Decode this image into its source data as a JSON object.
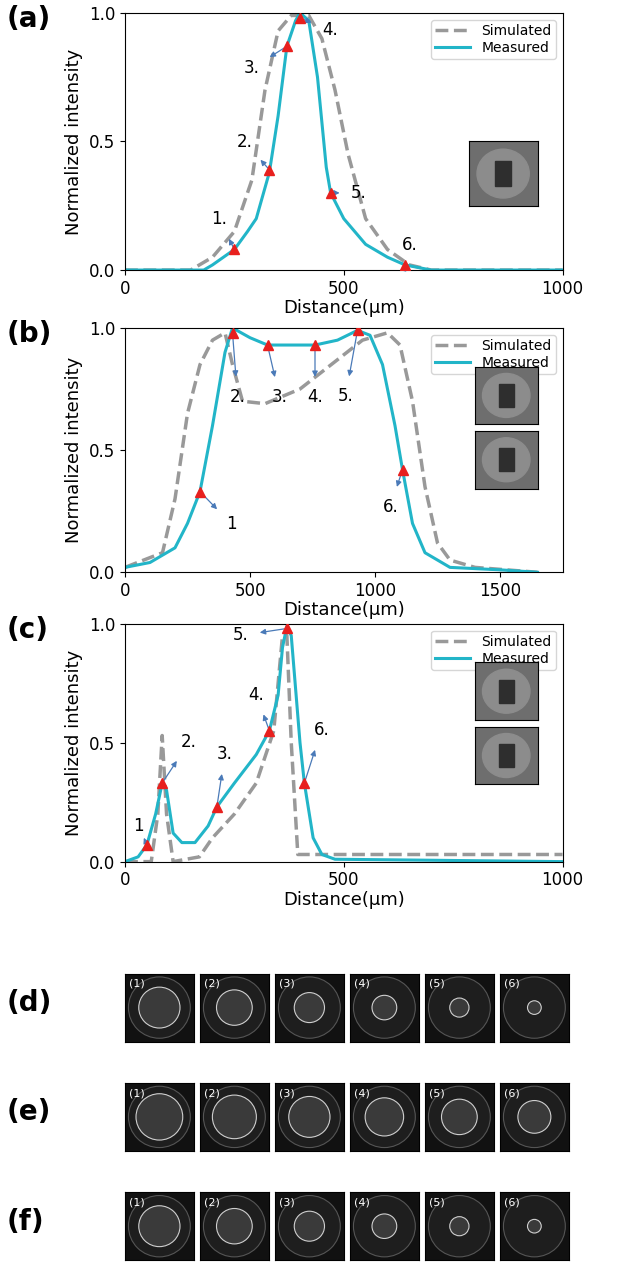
{
  "chart_data": [
    {
      "type": "line",
      "panel": "(a)",
      "x_label": "Distance(μm)",
      "y_label": "Normalized intensity",
      "xlim": [
        0,
        1000
      ],
      "xticks": [
        0,
        500,
        1000
      ],
      "ylim": [
        0,
        1.0
      ],
      "yticks": [
        0.0,
        0.5,
        1.0
      ],
      "legend": "upper right",
      "series": [
        {
          "name": "Simulated",
          "color": "#999999",
          "line_style": "dashed",
          "x": [
            0,
            150,
            200,
            250,
            290,
            320,
            350,
            380,
            420,
            450,
            480,
            510,
            550,
            600,
            650,
            700,
            1000
          ],
          "values": [
            0,
            0,
            0.05,
            0.15,
            0.35,
            0.7,
            0.93,
            0.99,
            0.99,
            0.9,
            0.7,
            0.45,
            0.2,
            0.08,
            0.02,
            0,
            0
          ]
        },
        {
          "name": "Measured",
          "color": "#22b5c8",
          "line_style": "solid",
          "x": [
            0,
            180,
            200,
            250,
            280,
            300,
            330,
            350,
            370,
            390,
            400,
            420,
            440,
            460,
            470,
            500,
            550,
            600,
            640,
            700,
            1000
          ],
          "values": [
            0,
            0,
            0.02,
            0.08,
            0.15,
            0.2,
            0.38,
            0.6,
            0.87,
            0.97,
            1.0,
            0.97,
            0.75,
            0.4,
            0.3,
            0.2,
            0.1,
            0.05,
            0.02,
            0,
            0
          ]
        }
      ],
      "annotations": [
        {
          "text": "1.",
          "x": 250,
          "y": 0.08
        },
        {
          "text": "2.",
          "x": 330,
          "y": 0.39
        },
        {
          "text": "3.",
          "x": 370,
          "y": 0.87
        },
        {
          "text": "4.",
          "x": 400,
          "y": 0.98
        },
        {
          "text": "5.",
          "x": 470,
          "y": 0.3
        },
        {
          "text": "6.",
          "x": 640,
          "y": 0.02
        }
      ]
    },
    {
      "type": "line",
      "panel": "(b)",
      "x_label": "Distance(μm)",
      "y_label": "Normalized intensity",
      "xlim": [
        0,
        1750
      ],
      "xticks": [
        0,
        500,
        1000,
        1500
      ],
      "ylim": [
        0,
        1.0
      ],
      "yticks": [
        0.0,
        0.5,
        1.0
      ],
      "legend": "upper right",
      "series": [
        {
          "name": "Simulated",
          "color": "#999999",
          "line_style": "dashed",
          "x": [
            0,
            150,
            200,
            250,
            300,
            350,
            400,
            430,
            470,
            560,
            700,
            850,
            950,
            1050,
            1100,
            1150,
            1200,
            1250,
            1300,
            1400,
            1650
          ],
          "values": [
            0.02,
            0.08,
            0.3,
            0.65,
            0.85,
            0.95,
            0.98,
            0.85,
            0.7,
            0.69,
            0.75,
            0.87,
            0.95,
            0.98,
            0.93,
            0.7,
            0.35,
            0.12,
            0.05,
            0.02,
            0.0
          ]
        },
        {
          "name": "Measured",
          "color": "#22b5c8",
          "line_style": "solid",
          "x": [
            0,
            100,
            200,
            250,
            300,
            350,
            400,
            430,
            500,
            570,
            650,
            760,
            850,
            930,
            980,
            1030,
            1080,
            1110,
            1150,
            1200,
            1300,
            1500,
            1650
          ],
          "values": [
            0.02,
            0.04,
            0.1,
            0.2,
            0.33,
            0.6,
            0.9,
            1.0,
            0.96,
            0.93,
            0.93,
            0.93,
            0.95,
            0.99,
            0.97,
            0.85,
            0.6,
            0.42,
            0.2,
            0.08,
            0.02,
            0.01,
            0.0
          ]
        }
      ],
      "annotations": [
        {
          "text": "1",
          "x": 300,
          "y": 0.33
        },
        {
          "text": "2.",
          "x": 430,
          "y": 0.98
        },
        {
          "text": "3.",
          "x": 570,
          "y": 0.93
        },
        {
          "text": "4.",
          "x": 760,
          "y": 0.93
        },
        {
          "text": "5.",
          "x": 930,
          "y": 0.99
        },
        {
          "text": "6.",
          "x": 1110,
          "y": 0.42
        }
      ]
    },
    {
      "type": "line",
      "panel": "(c)",
      "x_label": "Distance(μm)",
      "y_label": "Normalized intensity",
      "xlim": [
        0,
        1000
      ],
      "xticks": [
        0,
        500,
        1000
      ],
      "ylim": [
        0,
        1.0
      ],
      "yticks": [
        0.0,
        0.5,
        1.0
      ],
      "legend": "upper right",
      "series": [
        {
          "name": "Simulated",
          "color": "#999999",
          "line_style": "dashed",
          "x": [
            0,
            60,
            75,
            85,
            95,
            110,
            170,
            200,
            250,
            300,
            340,
            360,
            370,
            380,
            395,
            1000
          ],
          "values": [
            0,
            0,
            0.2,
            0.53,
            0.2,
            0.0,
            0.02,
            0.1,
            0.2,
            0.33,
            0.55,
            0.95,
            0.95,
            0.5,
            0.03,
            0.03
          ]
        },
        {
          "name": "Measured",
          "color": "#22b5c8",
          "line_style": "solid",
          "x": [
            0,
            30,
            50,
            70,
            85,
            95,
            110,
            130,
            160,
            190,
            210,
            250,
            300,
            330,
            350,
            360,
            370,
            380,
            400,
            410,
            430,
            450,
            480,
            1000
          ],
          "values": [
            0,
            0.02,
            0.07,
            0.2,
            0.33,
            0.3,
            0.12,
            0.08,
            0.08,
            0.15,
            0.23,
            0.33,
            0.45,
            0.55,
            0.7,
            0.9,
            0.99,
            0.95,
            0.5,
            0.33,
            0.1,
            0.03,
            0.01,
            0
          ]
        }
      ],
      "annotations": [
        {
          "text": "1",
          "x": 50,
          "y": 0.07
        },
        {
          "text": "2.",
          "x": 85,
          "y": 0.33
        },
        {
          "text": "3.",
          "x": 210,
          "y": 0.23
        },
        {
          "text": "4.",
          "x": 330,
          "y": 0.55
        },
        {
          "text": "5.",
          "x": 370,
          "y": 0.98
        },
        {
          "text": "6.",
          "x": 410,
          "y": 0.33
        }
      ]
    }
  ],
  "image_rows": [
    {
      "panel": "(d)",
      "items": [
        "(1)",
        "(2)",
        "(3)",
        "(4)",
        "(5)",
        "(6)"
      ]
    },
    {
      "panel": "(e)",
      "items": [
        "(1)",
        "(2)",
        "(3)",
        "(4)",
        "(5)",
        "(6)"
      ]
    },
    {
      "panel": "(f)",
      "items": [
        "(1)",
        "(2)",
        "(3)",
        "(4)",
        "(5)",
        "(6)"
      ]
    }
  ]
}
